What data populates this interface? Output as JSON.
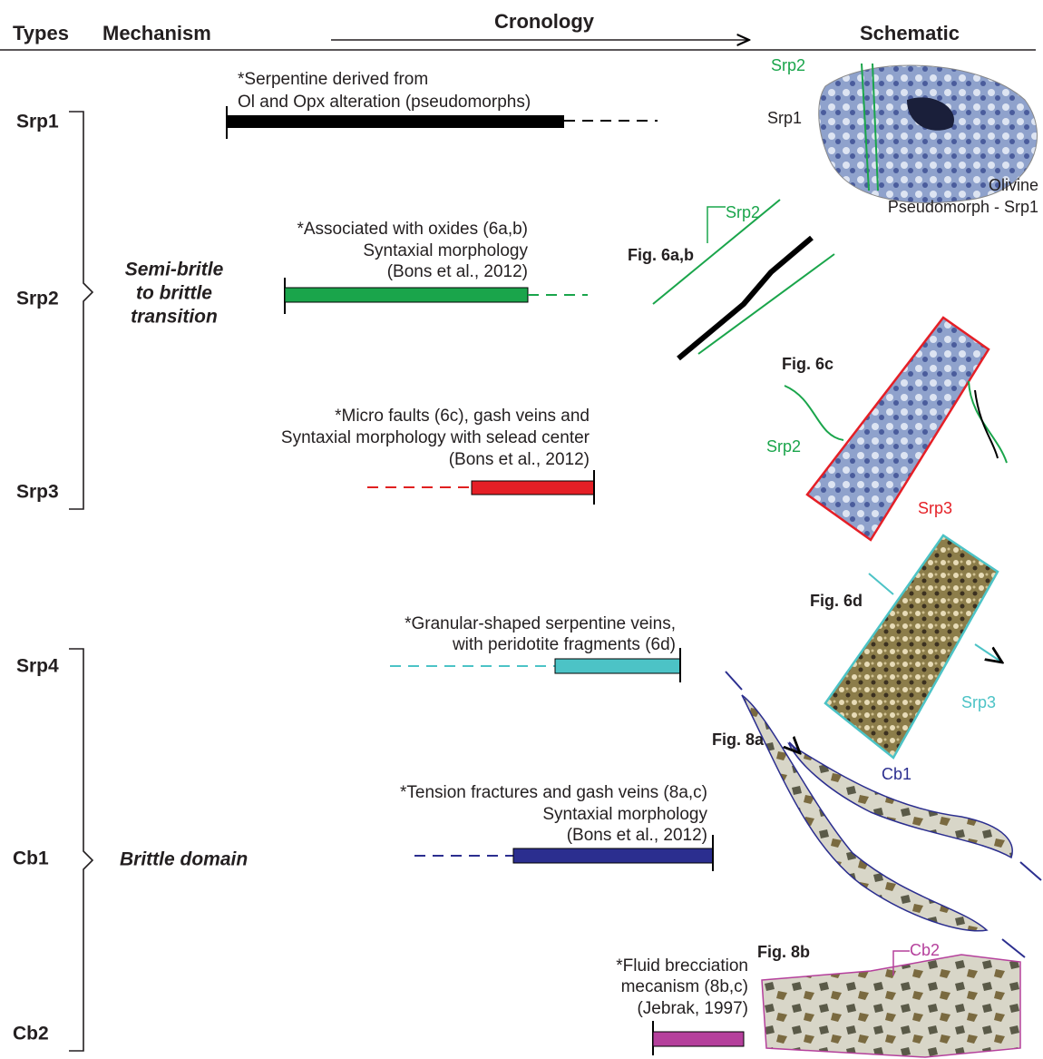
{
  "header": {
    "types": "Types",
    "mechanism": "Mechanism",
    "cronology": "Cronology",
    "schematic": "Schematic"
  },
  "types": [
    "Srp1",
    "Srp2",
    "Srp3",
    "Srp4",
    "Cb1",
    "Cb2"
  ],
  "mechanisms": [
    {
      "lines": [
        "Semi-britle",
        "to brittle",
        "transition"
      ]
    },
    {
      "lines": [
        "Brittle domain"
      ]
    }
  ],
  "rows": [
    {
      "lines": [
        "*Serpentine derived from",
        "Ol and Opx alteration (pseudomorphs)"
      ]
    },
    {
      "lines": [
        "*Associated with oxides (6a,b)",
        "Syntaxial morphology",
        "(Bons et al., 2012)"
      ]
    },
    {
      "lines": [
        "*Micro faults (6c), gash veins and",
        "Syntaxial morphology with selead center",
        "(Bons et al., 2012)"
      ]
    },
    {
      "lines": [
        "*Granular-shaped serpentine veins,",
        "with peridotite fragments (6d)"
      ]
    },
    {
      "lines": [
        "*Tension fractures and gash veins (8a,c)",
        "Syntaxial morphology",
        "(Bons et al., 2012)"
      ]
    },
    {
      "lines": [
        "*Fluid brecciation",
        "mecanism (8b,c)",
        "(Jebrak, 1997)"
      ]
    }
  ],
  "schematic": {
    "labels": [
      "Srp2",
      "Srp1",
      "Olivine",
      "Pseudomorph - Srp1",
      "Fig. 6a,b",
      "Srp2",
      "Fig. 6c",
      "Srp2",
      "Srp3",
      "Fig. 6d",
      "Srp3",
      "Fig. 8a",
      "Cb1",
      "Fig. 8b",
      "Cb2"
    ]
  }
}
